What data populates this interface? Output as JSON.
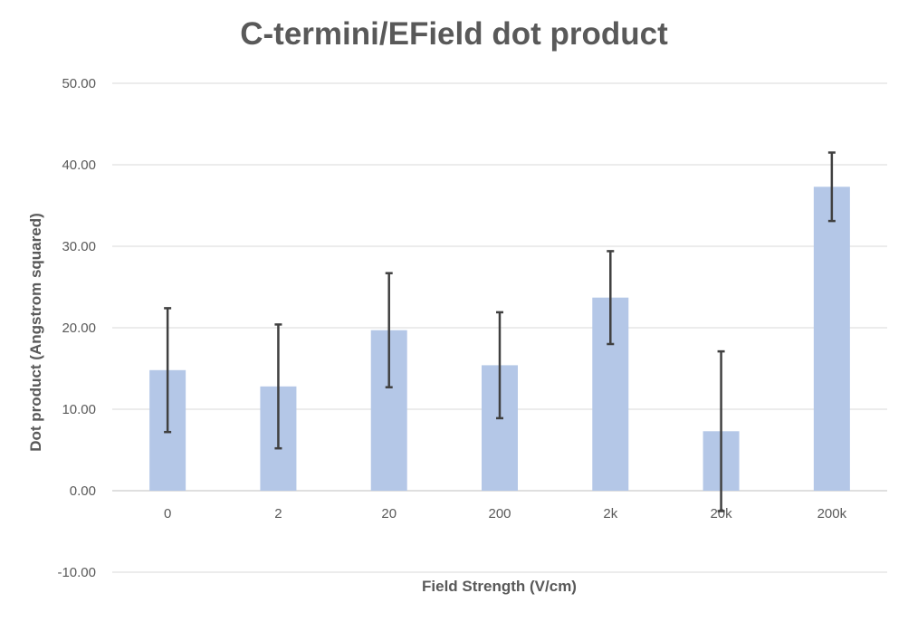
{
  "chart_data": {
    "type": "bar",
    "title": "C-termini/EField dot product",
    "xlabel": "Field Strength (V/cm)",
    "ylabel": "Dot product (Angstrom squared)",
    "categories": [
      "0",
      "2",
      "20",
      "200",
      "2k",
      "20k",
      "200k"
    ],
    "series": [
      {
        "values": [
          14.8,
          12.8,
          19.7,
          15.4,
          23.7,
          7.3,
          37.3
        ],
        "error": [
          7.6,
          7.6,
          7.0,
          6.5,
          5.7,
          9.8,
          4.2
        ],
        "color": "#b4c7e7"
      }
    ],
    "ylim": [
      -10,
      50
    ],
    "yticks": [
      "-10.00",
      "0.00",
      "10.00",
      "20.00",
      "30.00",
      "40.00",
      "50.00"
    ],
    "grid": true,
    "error_bar_color": "#404040",
    "gridline_color": "#d9d9d9"
  }
}
